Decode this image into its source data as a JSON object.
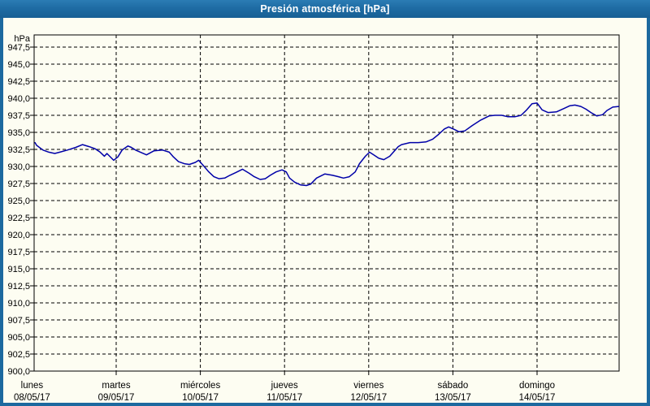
{
  "window": {
    "title": "Presión atmosférica [hPa]"
  },
  "colors": {
    "titlebar": "#1c699f",
    "panel_background": "#fdfdf2",
    "grid": "#000000",
    "axis": "#000000",
    "line": "#0000a8",
    "title_text": "#ffffff"
  },
  "chart_data": {
    "type": "line",
    "title": "Presión atmosférica [hPa]",
    "ylabel": "hPa",
    "ylim": [
      900.0,
      949.5
    ],
    "grid": "dashed",
    "legend": "none",
    "y_ticks": [
      {
        "label": "947,5",
        "value": 947.5
      },
      {
        "label": "945,0",
        "value": 945.0
      },
      {
        "label": "942,5",
        "value": 942.5
      },
      {
        "label": "940,0",
        "value": 940.0
      },
      {
        "label": "937,5",
        "value": 937.5
      },
      {
        "label": "935,0",
        "value": 935.0
      },
      {
        "label": "932,5",
        "value": 932.5
      },
      {
        "label": "930,0",
        "value": 930.0
      },
      {
        "label": "927,5",
        "value": 927.5
      },
      {
        "label": "925,0",
        "value": 925.0
      },
      {
        "label": "922,5",
        "value": 922.5
      },
      {
        "label": "920,0",
        "value": 920.0
      },
      {
        "label": "917,5",
        "value": 917.5
      },
      {
        "label": "915,0",
        "value": 915.0
      },
      {
        "label": "912,5",
        "value": 912.5
      },
      {
        "label": "910,0",
        "value": 910.0
      },
      {
        "label": "907,5",
        "value": 907.5
      },
      {
        "label": "905,0",
        "value": 905.0
      },
      {
        "label": "902,5",
        "value": 902.5
      },
      {
        "label": "900,0",
        "value": 900.0
      }
    ],
    "x_days": [
      {
        "name": "lunes",
        "date": "08/05/17"
      },
      {
        "name": "martes",
        "date": "09/05/17"
      },
      {
        "name": "miércoles",
        "date": "10/05/17"
      },
      {
        "name": "jueves",
        "date": "11/05/17"
      },
      {
        "name": "viernes",
        "date": "12/05/17"
      },
      {
        "name": "sábado",
        "date": "13/05/17"
      },
      {
        "name": "domingo",
        "date": "14/05/17"
      }
    ],
    "series": [
      {
        "name": "Presión atmosférica",
        "color": "#0000a8",
        "points": [
          [
            0.036,
            933.5
          ],
          [
            0.055,
            933.1
          ],
          [
            0.13,
            932.4
          ],
          [
            0.2,
            932.1
          ],
          [
            0.27,
            931.9
          ],
          [
            0.33,
            932.1
          ],
          [
            0.42,
            932.4
          ],
          [
            0.52,
            932.8
          ],
          [
            0.6,
            933.2
          ],
          [
            0.68,
            932.9
          ],
          [
            0.75,
            932.6
          ],
          [
            0.81,
            932.1
          ],
          [
            0.86,
            931.5
          ],
          [
            0.89,
            931.9
          ],
          [
            0.97,
            930.9
          ],
          [
            1.02,
            931.4
          ],
          [
            1.07,
            932.4
          ],
          [
            1.14,
            933.0
          ],
          [
            1.18,
            932.8
          ],
          [
            1.23,
            932.4
          ],
          [
            1.36,
            931.7
          ],
          [
            1.45,
            932.3
          ],
          [
            1.55,
            932.4
          ],
          [
            1.63,
            932.1
          ],
          [
            1.68,
            931.4
          ],
          [
            1.74,
            930.7
          ],
          [
            1.81,
            930.4
          ],
          [
            1.87,
            930.3
          ],
          [
            1.94,
            930.6
          ],
          [
            1.98,
            930.9
          ],
          [
            2.03,
            930.2
          ],
          [
            2.1,
            929.2
          ],
          [
            2.16,
            928.5
          ],
          [
            2.22,
            928.2
          ],
          [
            2.29,
            928.3
          ],
          [
            2.35,
            928.7
          ],
          [
            2.42,
            929.1
          ],
          [
            2.5,
            929.6
          ],
          [
            2.58,
            929.0
          ],
          [
            2.64,
            928.5
          ],
          [
            2.71,
            928.1
          ],
          [
            2.77,
            928.2
          ],
          [
            2.83,
            928.7
          ],
          [
            2.9,
            929.2
          ],
          [
            2.97,
            929.5
          ],
          [
            3.02,
            929.2
          ],
          [
            3.06,
            928.3
          ],
          [
            3.12,
            927.7
          ],
          [
            3.19,
            927.3
          ],
          [
            3.26,
            927.2
          ],
          [
            3.31,
            927.4
          ],
          [
            3.38,
            928.3
          ],
          [
            3.48,
            928.9
          ],
          [
            3.57,
            928.7
          ],
          [
            3.64,
            928.5
          ],
          [
            3.7,
            928.3
          ],
          [
            3.77,
            928.5
          ],
          [
            3.84,
            929.2
          ],
          [
            3.89,
            930.4
          ],
          [
            3.96,
            931.5
          ],
          [
            4.01,
            932.1
          ],
          [
            4.06,
            931.7
          ],
          [
            4.12,
            931.2
          ],
          [
            4.18,
            931.0
          ],
          [
            4.25,
            931.5
          ],
          [
            4.35,
            932.9
          ],
          [
            4.39,
            933.2
          ],
          [
            4.49,
            933.5
          ],
          [
            4.59,
            933.5
          ],
          [
            4.68,
            933.6
          ],
          [
            4.76,
            934.0
          ],
          [
            4.83,
            934.7
          ],
          [
            4.9,
            935.5
          ],
          [
            4.95,
            935.8
          ],
          [
            5.02,
            935.4
          ],
          [
            5.07,
            935.1
          ],
          [
            5.14,
            935.2
          ],
          [
            5.23,
            936.0
          ],
          [
            5.33,
            936.8
          ],
          [
            5.43,
            937.4
          ],
          [
            5.5,
            937.5
          ],
          [
            5.58,
            937.5
          ],
          [
            5.65,
            937.3
          ],
          [
            5.74,
            937.3
          ],
          [
            5.81,
            937.5
          ],
          [
            5.87,
            938.2
          ],
          [
            5.94,
            939.2
          ],
          [
            6.0,
            939.3
          ],
          [
            6.06,
            938.3
          ],
          [
            6.13,
            937.9
          ],
          [
            6.23,
            938.0
          ],
          [
            6.32,
            938.5
          ],
          [
            6.39,
            938.9
          ],
          [
            6.45,
            939.0
          ],
          [
            6.52,
            938.8
          ],
          [
            6.58,
            938.4
          ],
          [
            6.64,
            937.9
          ],
          [
            6.71,
            937.4
          ],
          [
            6.78,
            937.6
          ],
          [
            6.83,
            938.2
          ],
          [
            6.9,
            938.7
          ],
          [
            6.97,
            938.8
          ]
        ]
      }
    ]
  }
}
